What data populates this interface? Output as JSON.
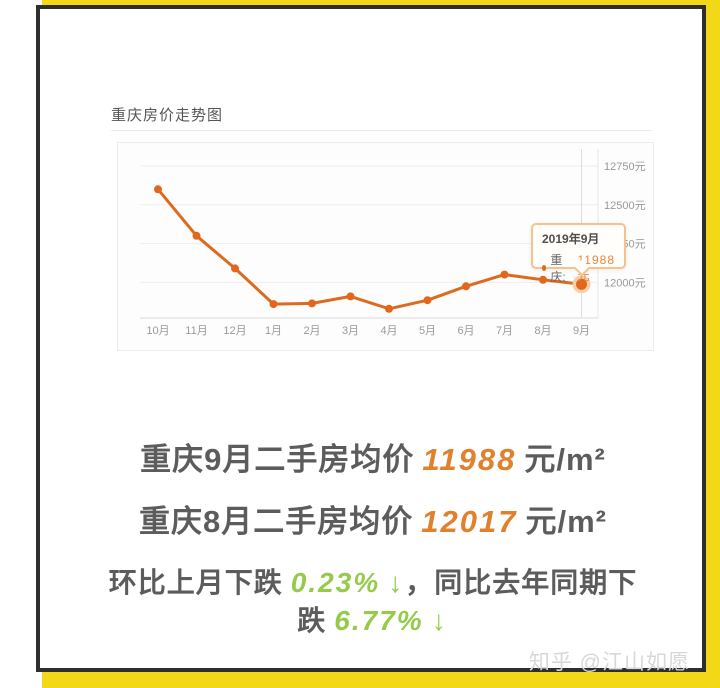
{
  "chart_panel": {
    "title": "重庆房价走势图"
  },
  "chart_data": {
    "type": "line",
    "title": "重庆房价走势图",
    "categories": [
      "10月",
      "11月",
      "12月",
      "1月",
      "2月",
      "3月",
      "4月",
      "5月",
      "6月",
      "7月",
      "8月",
      "9月"
    ],
    "series": [
      {
        "name": "重庆",
        "values": [
          12600,
          12300,
          12090,
          11860,
          11865,
          11910,
          11830,
          11885,
          11975,
          12050,
          12017,
          11988
        ]
      }
    ],
    "y_ticks": [
      {
        "value": 12750,
        "label": "12750元"
      },
      {
        "value": 12500,
        "label": "12500元"
      },
      {
        "value": 12250,
        "label": "12250元"
      },
      {
        "value": 12000,
        "label": "12000元"
      }
    ],
    "ylim": [
      11760,
      12900
    ],
    "grid": true,
    "legend_position": "none",
    "line_color": "#dc6b20",
    "point_color": "#e2671c",
    "highlight_index": 11,
    "highlight_halo_color": "#f6cfa6"
  },
  "tooltip": {
    "date": "2019年9月",
    "series_label": "重庆:",
    "value": "11988元"
  },
  "summary": {
    "line1_prefix": "重庆9月二手房均价",
    "line1_value": "11988",
    "line1_suffix": "元/m²",
    "line2_prefix": "重庆8月二手房均价",
    "line2_value": "12017",
    "line2_suffix": "元/m²",
    "line3_part1": "环比上月下跌",
    "line3_mom": "0.23%",
    "line3_arrow1": "↓",
    "line3_part2": "，同比去年同期下",
    "line3_part3": "跌",
    "line3_yoy": "6.77%",
    "line3_arrow2": "↓"
  },
  "watermark": "知乎 @江山如愿",
  "colors": {
    "frame_yellow": "#f3d818",
    "frame_black": "#2e2e2e",
    "accent_orange": "#e2671c",
    "value_orange": "#e0812e",
    "drop_green": "#95ca4b",
    "axis_label_gray": "#999999"
  }
}
